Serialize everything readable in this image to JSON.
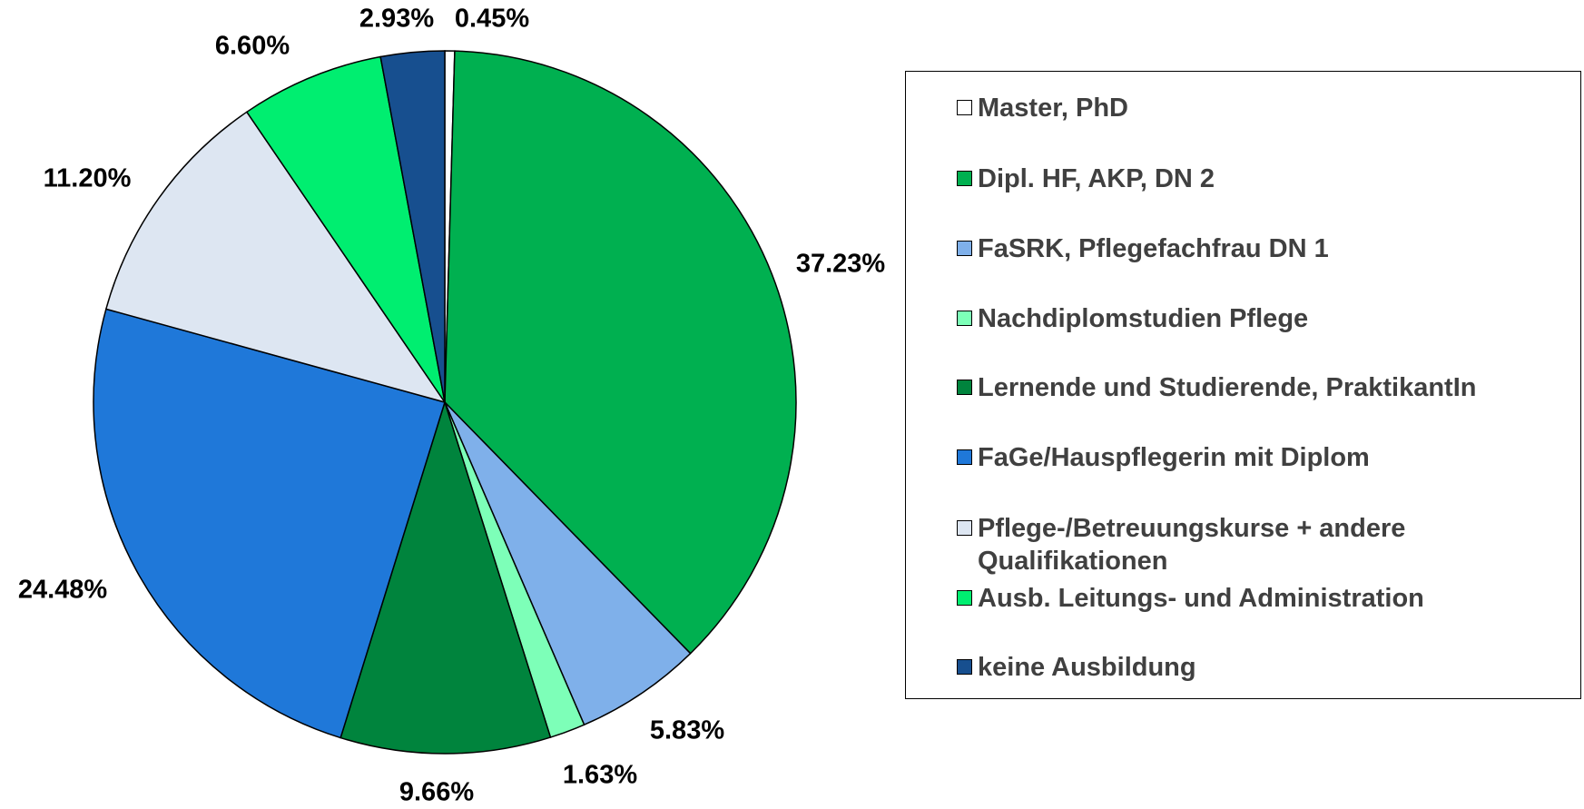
{
  "chart_data": {
    "type": "pie",
    "categories": [
      "Master, PhD",
      "Dipl. HF, AKP, DN 2",
      "FaSRK, Pflegefachfrau DN 1",
      "Nachdiplomstudien Pflege",
      "Lernende und Studierende, PraktikantIn",
      "FaGe/Hauspflegerin mit Diplom",
      "Pflege-/Betreuungskurse + andere Qualifikationen",
      "Ausb. Leitungs- und Administration",
      "keine Ausbildung"
    ],
    "values": [
      0.45,
      37.23,
      5.83,
      1.63,
      9.66,
      24.48,
      11.2,
      6.6,
      2.93
    ],
    "value_labels": [
      "0.45%",
      "37.23%",
      "5.83%",
      "1.63%",
      "9.66%",
      "24.48%",
      "11.20%",
      "6.60%",
      "2.93%"
    ],
    "colors": [
      "#ffffff",
      "#00b050",
      "#7fb0ea",
      "#7dffb8",
      "#00843d",
      "#1f78d9",
      "#dde6f2",
      "#00ee70",
      "#174f8f"
    ],
    "legend": "right"
  }
}
